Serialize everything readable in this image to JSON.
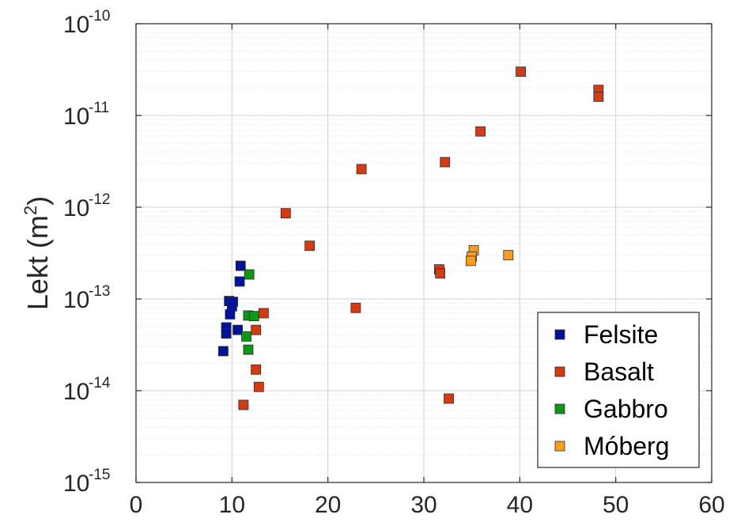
{
  "chart_data": {
    "type": "scatter",
    "xlabel": "",
    "ylabel": "Lekt (m²)",
    "ylabel_base": "Lekt (m",
    "ylabel_sup": "2",
    "ylabel_close": ")",
    "xlim": [
      0,
      60
    ],
    "ylim": [
      1e-15,
      1e-10
    ],
    "yscale": "log",
    "grid": true,
    "legend_position": "bottom-right",
    "x_ticks": [
      {
        "label": "0",
        "value": 0
      },
      {
        "label": "10",
        "value": 10
      },
      {
        "label": "20",
        "value": 20
      },
      {
        "label": "30",
        "value": 30
      },
      {
        "label": "40",
        "value": 40
      },
      {
        "label": "50",
        "value": 50
      },
      {
        "label": "60",
        "value": 60
      }
    ],
    "y_ticks": [
      {
        "base": "10",
        "exp": "-10",
        "value": 1e-10
      },
      {
        "base": "10",
        "exp": "-11",
        "value": 1e-11
      },
      {
        "base": "10",
        "exp": "-12",
        "value": 1e-12
      },
      {
        "base": "10",
        "exp": "-13",
        "value": 1e-13
      },
      {
        "base": "10",
        "exp": "-14",
        "value": 1e-14
      },
      {
        "base": "10",
        "exp": "-15",
        "value": 1e-15
      }
    ],
    "series": [
      {
        "name": "Felsite",
        "color": "#00129a",
        "points": [
          [
            10.9,
            2.3e-13
          ],
          [
            10.8,
            1.55e-13
          ],
          [
            9.7,
            9.5e-14
          ],
          [
            10.1,
            9.3e-14
          ],
          [
            10.0,
            8.3e-14
          ],
          [
            9.8,
            6.8e-14
          ],
          [
            9.4,
            4.9e-14
          ],
          [
            9.4,
            4.2e-14
          ],
          [
            10.6,
            4.6e-14
          ],
          [
            9.1,
            2.7e-14
          ]
        ]
      },
      {
        "name": "Basalt",
        "color": "#d23c14",
        "points": [
          [
            40.1,
            3e-11
          ],
          [
            48.2,
            1.9e-11
          ],
          [
            48.2,
            1.6e-11
          ],
          [
            35.9,
            6.7e-12
          ],
          [
            32.2,
            3.1e-12
          ],
          [
            23.5,
            2.6e-12
          ],
          [
            15.6,
            8.6e-13
          ],
          [
            18.1,
            3.8e-13
          ],
          [
            31.6,
            2.1e-13
          ],
          [
            31.7,
            1.9e-13
          ],
          [
            22.9,
            8e-14
          ],
          [
            13.3,
            7e-14
          ],
          [
            12.5,
            4.6e-14
          ],
          [
            12.5,
            1.7e-14
          ],
          [
            12.8,
            1.1e-14
          ],
          [
            32.6,
            8.2e-15
          ],
          [
            11.2,
            7e-15
          ]
        ]
      },
      {
        "name": "Gabbro",
        "color": "#0f9616",
        "points": [
          [
            11.8,
            1.85e-13
          ],
          [
            11.7,
            6.6e-14
          ],
          [
            12.3,
            6.5e-14
          ],
          [
            11.5,
            3.9e-14
          ],
          [
            11.7,
            2.8e-14
          ]
        ]
      },
      {
        "name": "Móberg",
        "color": "#f99e1a",
        "points": [
          [
            35.2,
            3.4e-13
          ],
          [
            38.8,
            3e-13
          ],
          [
            35.0,
            2.9e-13
          ],
          [
            34.9,
            2.6e-13
          ]
        ]
      }
    ]
  }
}
